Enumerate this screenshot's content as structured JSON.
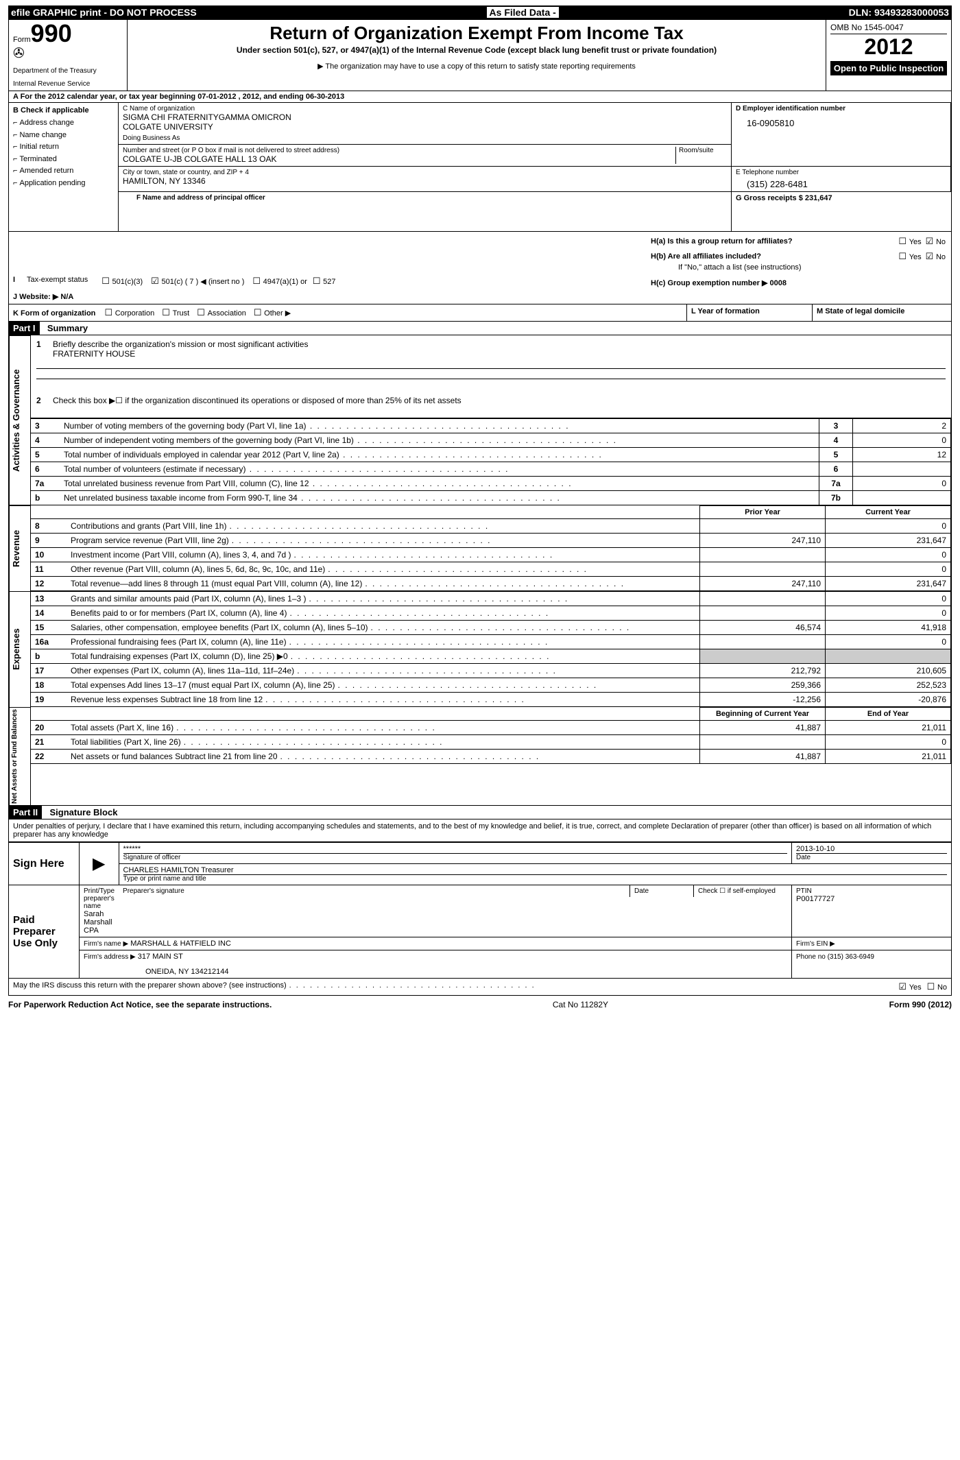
{
  "topbar": {
    "left": "efile GRAPHIC print - DO NOT PROCESS",
    "mid": "As Filed Data -",
    "right": "DLN: 93493283000053"
  },
  "header": {
    "form_label": "Form",
    "form_number": "990",
    "dept1": "Department of the Treasury",
    "dept2": "Internal Revenue Service",
    "title": "Return of Organization Exempt From Income Tax",
    "subtitle": "Under section 501(c), 527, or 4947(a)(1) of the Internal Revenue Code (except black lung benefit trust or private foundation)",
    "notice": "▶ The organization may have to use a copy of this return to satisfy state reporting requirements",
    "omb": "OMB No 1545-0047",
    "year": "2012",
    "inspection": "Open to Public Inspection"
  },
  "section_a": "A For the 2012 calendar year, or tax year beginning 07-01-2012    , 2012, and ending 06-30-2013",
  "block_b": {
    "heading": "B Check if applicable",
    "items": [
      "Address change",
      "Name change",
      "Initial return",
      "Terminated",
      "Amended return",
      "Application pending"
    ]
  },
  "block_c": {
    "name_label": "C Name of organization",
    "name1": "SIGMA CHI FRATERNITYGAMMA OMICRON",
    "name2": "COLGATE UNIVERSITY",
    "dba_label": "Doing Business As",
    "street_label": "Number and street (or P O  box if mail is not delivered to street address)",
    "room_label": "Room/suite",
    "street": "COLGATE U-JB COLGATE HALL 13 OAK",
    "city_label": "City or town, state or country, and ZIP + 4",
    "city": "HAMILTON, NY  13346",
    "officer_label": "F  Name and address of principal officer"
  },
  "block_d": {
    "ein_label": "D Employer identification number",
    "ein": "16-0905810",
    "phone_label": "E Telephone number",
    "phone": "(315) 228-6481",
    "gross_label": "G Gross receipts $ 231,647"
  },
  "block_h": {
    "a": "H(a)  Is this a group return for affiliates?",
    "b": "H(b)  Are all affiliates included?",
    "b_note": "If \"No,\" attach a list  (see instructions)",
    "c": "H(c)   Group exemption number ▶  0008",
    "yes": "Yes",
    "no": "No"
  },
  "line_i": "I  Tax-exempt status",
  "i_opts": {
    "a": "501(c)(3)",
    "b": "501(c) ( 7 ) ◀ (insert no )",
    "c": "4947(a)(1) or",
    "d": "527"
  },
  "line_j": "J  Website: ▶  N/A",
  "line_k": "K Form of organization",
  "k_opts": [
    "Corporation",
    "Trust",
    "Association",
    "Other ▶"
  ],
  "line_l": "L Year of formation",
  "line_m": "M State of legal domicile",
  "part1": {
    "title": "Part I",
    "name": "Summary",
    "q1": "Briefly describe the organization's mission or most significant activities",
    "q1_val": "FRATERNITY HOUSE",
    "q2": "Check this box ▶☐ if the organization discontinued its operations or disposed of more than 25% of its net assets",
    "rows_a": [
      {
        "n": "3",
        "d": "Number of voting members of the governing body (Part VI, line 1a)",
        "box": "3",
        "v": "2"
      },
      {
        "n": "4",
        "d": "Number of independent voting members of the governing body (Part VI, line 1b)",
        "box": "4",
        "v": "0"
      },
      {
        "n": "5",
        "d": "Total number of individuals employed in calendar year 2012 (Part V, line 2a)",
        "box": "5",
        "v": "12"
      },
      {
        "n": "6",
        "d": "Total number of volunteers (estimate if necessary)",
        "box": "6",
        "v": ""
      },
      {
        "n": "7a",
        "d": "Total unrelated business revenue from Part VIII, column (C), line 12",
        "box": "7a",
        "v": "0"
      },
      {
        "n": " b",
        "d": "Net unrelated business taxable income from Form 990-T, line 34",
        "box": "7b",
        "v": ""
      }
    ],
    "col_headers": {
      "prior": "Prior Year",
      "current": "Current Year",
      "begin": "Beginning of Current Year",
      "end": "End of Year"
    },
    "rev": [
      {
        "n": "8",
        "d": "Contributions and grants (Part VIII, line 1h)",
        "p": "",
        "c": "0"
      },
      {
        "n": "9",
        "d": "Program service revenue (Part VIII, line 2g)",
        "p": "247,110",
        "c": "231,647"
      },
      {
        "n": "10",
        "d": "Investment income (Part VIII, column (A), lines 3, 4, and 7d )",
        "p": "",
        "c": "0"
      },
      {
        "n": "11",
        "d": "Other revenue (Part VIII, column (A), lines 5, 6d, 8c, 9c, 10c, and 11e)",
        "p": "",
        "c": "0"
      },
      {
        "n": "12",
        "d": "Total revenue—add lines 8 through 11 (must equal Part VIII, column (A), line 12)",
        "p": "247,110",
        "c": "231,647"
      }
    ],
    "exp": [
      {
        "n": "13",
        "d": "Grants and similar amounts paid (Part IX, column (A), lines 1–3 )",
        "p": "",
        "c": "0"
      },
      {
        "n": "14",
        "d": "Benefits paid to or for members (Part IX, column (A), line 4)",
        "p": "",
        "c": "0"
      },
      {
        "n": "15",
        "d": "Salaries, other compensation, employee benefits (Part IX, column (A), lines 5–10)",
        "p": "46,574",
        "c": "41,918"
      },
      {
        "n": "16a",
        "d": "Professional fundraising fees (Part IX, column (A), line 11e)",
        "p": "",
        "c": "0"
      },
      {
        "n": "  b",
        "d": "Total fundraising expenses (Part IX, column (D), line 25) ▶0",
        "p": "—gray—",
        "c": "—gray—"
      },
      {
        "n": "17",
        "d": "Other expenses (Part IX, column (A), lines 11a–11d, 11f–24e)",
        "p": "212,792",
        "c": "210,605"
      },
      {
        "n": "18",
        "d": "Total expenses  Add lines 13–17 (must equal Part IX, column (A), line 25)",
        "p": "259,366",
        "c": "252,523"
      },
      {
        "n": "19",
        "d": "Revenue less expenses  Subtract line 18 from line 12",
        "p": "-12,256",
        "c": "-20,876"
      }
    ],
    "net": [
      {
        "n": "20",
        "d": "Total assets (Part X, line 16)",
        "p": "41,887",
        "c": "21,011"
      },
      {
        "n": "21",
        "d": "Total liabilities (Part X, line 26)",
        "p": "",
        "c": "0"
      },
      {
        "n": "22",
        "d": "Net assets or fund balances  Subtract line 21 from line 20",
        "p": "41,887",
        "c": "21,011"
      }
    ],
    "labels": {
      "ag": "Activities & Governance",
      "rev": "Revenue",
      "exp": "Expenses",
      "net": "Net Assets or Fund Balances"
    }
  },
  "part2": {
    "title": "Part II",
    "name": "Signature Block",
    "perjury": "Under penalties of perjury, I declare that I have examined this return, including accompanying schedules and statements, and to the best of my knowledge and belief, it is true, correct, and complete  Declaration of preparer (other than officer) is based on all information of which preparer has any knowledge",
    "sign_here": "Sign Here",
    "sig_mask": "******",
    "sig_label": "Signature of officer",
    "sig_date": "2013-10-10",
    "date_label": "Date",
    "officer_name": "CHARLES HAMILTON Treasurer",
    "officer_label": "Type or print name and title",
    "paid": "Paid Preparer Use Only",
    "prep_name_label": "Print/Type preparer's name",
    "prep_name": "Sarah Marshall CPA",
    "prep_sig_label": "Preparer's signature",
    "self_emp": "Check ☐ if self-employed",
    "ptin_label": "PTIN",
    "ptin": "P00177727",
    "firm_name_label": "Firm's name    ▶",
    "firm_name": "MARSHALL & HATFIELD INC",
    "firm_ein_label": "Firm's EIN ▶",
    "firm_addr_label": "Firm's address ▶",
    "firm_addr1": "317 MAIN ST",
    "firm_addr2": "ONEIDA, NY  134212144",
    "firm_phone_label": "Phone no  (315) 363-6949",
    "discuss": "May the IRS discuss this return with the preparer shown above? (see instructions)"
  },
  "footer": {
    "left": "For Paperwork Reduction Act Notice, see the separate instructions.",
    "mid": "Cat No 11282Y",
    "right": "Form 990 (2012)"
  }
}
